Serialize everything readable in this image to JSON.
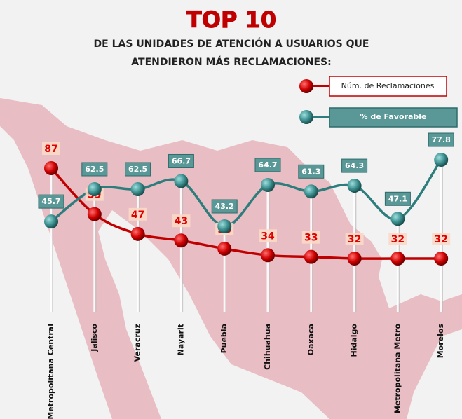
{
  "chart_data": {
    "type": "line",
    "title": "TOP 10",
    "subtitle": [
      "DE LAS UNIDADES DE ATENCIÓN A USUARIOS QUE",
      "ATENDIERON MÁS RECLAMACIONES:"
    ],
    "categories": [
      "Metropolitana Central",
      "Jalisco",
      "Veracruz",
      "Nayarit",
      "Puebla",
      "Chihuahua",
      "Oaxaca",
      "Hidalgo",
      "Metropolitana Metro",
      "Morelos"
    ],
    "series": [
      {
        "name": "Núm. de Reclamaciones",
        "color": "#c00000",
        "values": [
          87,
          59,
          47,
          43,
          38,
          34,
          33,
          32,
          32,
          32
        ]
      },
      {
        "name": "% de Favorable",
        "color": "#2e7d7d",
        "values": [
          45.7,
          62.5,
          62.5,
          66.7,
          43.2,
          64.7,
          61.3,
          64.3,
          47.1,
          77.8
        ]
      }
    ]
  }
}
